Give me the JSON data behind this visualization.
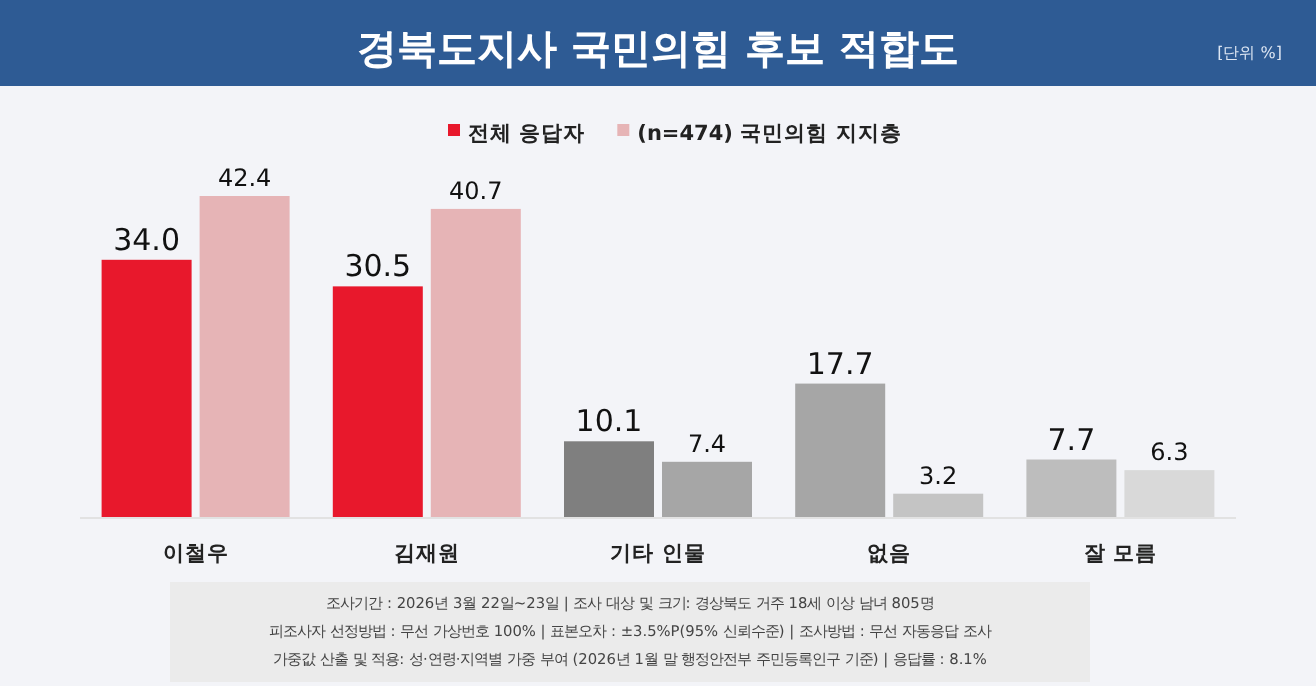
{
  "chart_data": {
    "type": "bar",
    "title": "경북도지사 국민의힘 후보 적합도",
    "categories": [
      "이철우",
      "김재원",
      "기타 인물",
      "없음",
      "잘 모름"
    ],
    "series": [
      {
        "name": "전체 응답자",
        "color": "#e8182c",
        "colors": [
          "#e8182c",
          "#e8182c",
          "#7f7f7f",
          "#a6a6a6",
          "#bdbdbd"
        ],
        "values": [
          34.0,
          30.5,
          10.1,
          17.7,
          7.7
        ],
        "value_labels": [
          "34.0",
          "30.5",
          "10.1",
          "17.7",
          "7.7"
        ]
      },
      {
        "name": "(n=474) 국민의힘 지지층",
        "color": "#e6b4b6",
        "colors": [
          "#e6b4b6",
          "#e6b4b6",
          "#a6a6a6",
          "#c4c4c4",
          "#d9d9d9"
        ],
        "values": [
          42.4,
          40.7,
          7.4,
          3.2,
          6.3
        ],
        "value_labels": [
          "42.4",
          "40.7",
          "7.4",
          "3.2",
          "6.3"
        ]
      }
    ],
    "legend": "top",
    "annotations": [
      "[단위 %]",
      "조사기간 : 2026년 3월 22일~23일 | 조사 대상 및 크기: 경상북도 거주 18세 이상 남녀 805명",
      "피조사자 선정방법 : 무선 가상번호 100% | 표본오차 : ±3.5%P(95% 신뢰수준) | 조사방법 : 무선 자동응답 조사",
      "가중값 산출 및 적용: 성·연령·지역별 가중 부여 (2026년 1월 말 행정안전부 주민등록인구 기준) | 응답률 : 8.1%"
    ]
  }
}
